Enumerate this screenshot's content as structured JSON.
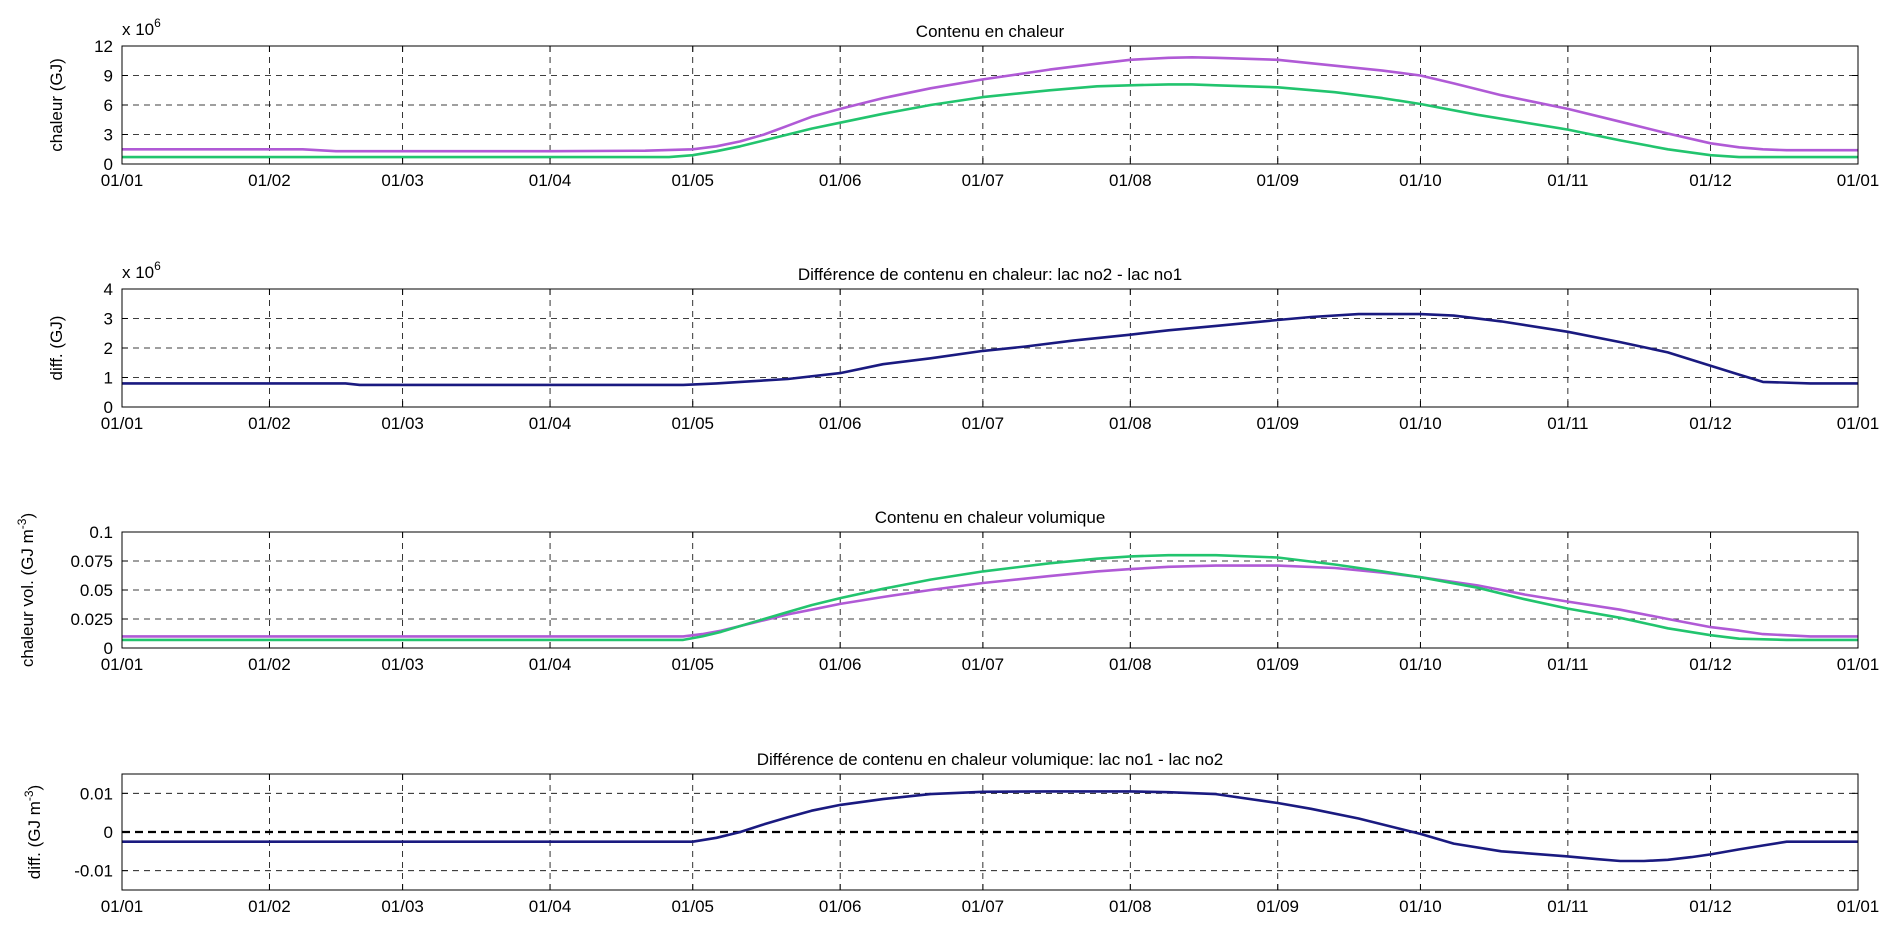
{
  "chart_data": [
    {
      "type": "line",
      "title": "Contenu en chaleur",
      "ylabel": "chaleur (GJ)",
      "scale_label": "x 10",
      "scale_exp": "6",
      "ylim": [
        0,
        12
      ],
      "yticks": [
        "0",
        "3",
        "6",
        "9",
        "12"
      ],
      "ytick_values": [
        0,
        3,
        6,
        9,
        12
      ],
      "grid": true,
      "xticks": [
        "01/01",
        "01/02",
        "01/03",
        "01/04",
        "01/05",
        "01/06",
        "01/07",
        "01/08",
        "01/09",
        "01/10",
        "01/11",
        "01/12",
        "01/01"
      ],
      "x_days": [
        0,
        31,
        59,
        90,
        120,
        151,
        181,
        212,
        243,
        273,
        304,
        334,
        365
      ],
      "series": [
        {
          "color": "#b05ad6",
          "x": [
            0,
            38,
            45,
            60,
            90,
            110,
            120,
            125,
            130,
            135,
            140,
            145,
            151,
            160,
            170,
            181,
            195,
            205,
            212,
            220,
            225,
            230,
            243,
            255,
            265,
            273,
            280,
            290,
            304,
            315,
            325,
            334,
            340,
            345,
            350,
            365
          ],
          "y": [
            1.5,
            1.5,
            1.3,
            1.3,
            1.3,
            1.35,
            1.5,
            1.8,
            2.3,
            3.0,
            3.9,
            4.8,
            5.6,
            6.7,
            7.7,
            8.6,
            9.6,
            10.2,
            10.6,
            10.8,
            10.85,
            10.8,
            10.6,
            10.0,
            9.5,
            9.0,
            8.2,
            7.0,
            5.6,
            4.3,
            3.1,
            2.1,
            1.7,
            1.5,
            1.4,
            1.4
          ]
        },
        {
          "color": "#22c46e",
          "x": [
            0,
            60,
            90,
            115,
            120,
            125,
            130,
            135,
            140,
            145,
            151,
            160,
            170,
            181,
            195,
            205,
            212,
            220,
            225,
            230,
            243,
            255,
            265,
            273,
            285,
            304,
            315,
            325,
            334,
            340,
            350,
            365
          ],
          "y": [
            0.7,
            0.7,
            0.7,
            0.7,
            0.9,
            1.3,
            1.8,
            2.4,
            3.0,
            3.6,
            4.2,
            5.1,
            6.0,
            6.8,
            7.5,
            7.9,
            8.0,
            8.1,
            8.1,
            8.0,
            7.8,
            7.3,
            6.7,
            6.1,
            5.0,
            3.5,
            2.4,
            1.5,
            0.9,
            0.7,
            0.7,
            0.7
          ]
        }
      ]
    },
    {
      "type": "line",
      "title": "Différence de contenu en chaleur: lac no2 - lac no1",
      "ylabel": "diff. (GJ)",
      "scale_label": "x 10",
      "scale_exp": "6",
      "ylim": [
        0,
        4
      ],
      "yticks": [
        "0",
        "1",
        "2",
        "3",
        "4"
      ],
      "ytick_values": [
        0,
        1,
        2,
        3,
        4
      ],
      "grid": true,
      "xticks": [
        "01/01",
        "01/02",
        "01/03",
        "01/04",
        "01/05",
        "01/06",
        "01/07",
        "01/08",
        "01/09",
        "01/10",
        "01/11",
        "01/12",
        "01/01"
      ],
      "x_days": [
        0,
        31,
        59,
        90,
        120,
        151,
        181,
        212,
        243,
        273,
        304,
        334,
        365
      ],
      "series": [
        {
          "color": "#1a1a80",
          "x": [
            0,
            30,
            47,
            50,
            90,
            118,
            125,
            130,
            140,
            151,
            160,
            170,
            181,
            190,
            200,
            212,
            220,
            230,
            243,
            250,
            260,
            273,
            280,
            290,
            304,
            315,
            325,
            334,
            340,
            345,
            355,
            365
          ],
          "y": [
            0.8,
            0.8,
            0.8,
            0.75,
            0.75,
            0.75,
            0.8,
            0.85,
            0.95,
            1.15,
            1.45,
            1.65,
            1.9,
            2.05,
            2.25,
            2.45,
            2.6,
            2.75,
            2.95,
            3.05,
            3.15,
            3.15,
            3.1,
            2.9,
            2.55,
            2.2,
            1.85,
            1.4,
            1.1,
            0.85,
            0.8,
            0.8
          ]
        }
      ]
    },
    {
      "type": "line",
      "title": "Contenu en chaleur volumique",
      "ylabel": "chaleur vol. (GJ m",
      "ylabel_sup": "-3",
      "ylabel_end": ")",
      "ylim": [
        0,
        0.1
      ],
      "yticks": [
        "0",
        "0.025",
        "0.05",
        "0.075",
        "0.1"
      ],
      "ytick_values": [
        0,
        0.025,
        0.05,
        0.075,
        0.1
      ],
      "grid": true,
      "xticks": [
        "01/01",
        "01/02",
        "01/03",
        "01/04",
        "01/05",
        "01/06",
        "01/07",
        "01/08",
        "01/09",
        "01/10",
        "01/11",
        "01/12",
        "01/01"
      ],
      "x_days": [
        0,
        31,
        59,
        90,
        120,
        151,
        181,
        212,
        243,
        273,
        304,
        334,
        365
      ],
      "series": [
        {
          "color": "#b05ad6",
          "x": [
            0,
            60,
            90,
            118,
            122,
            126,
            130,
            135,
            140,
            145,
            151,
            160,
            170,
            181,
            195,
            205,
            212,
            220,
            230,
            243,
            255,
            265,
            273,
            285,
            295,
            304,
            315,
            325,
            334,
            340,
            345,
            355,
            365
          ],
          "y": [
            0.01,
            0.01,
            0.01,
            0.01,
            0.012,
            0.015,
            0.019,
            0.024,
            0.029,
            0.033,
            0.038,
            0.044,
            0.05,
            0.056,
            0.062,
            0.066,
            0.068,
            0.07,
            0.071,
            0.071,
            0.069,
            0.065,
            0.061,
            0.054,
            0.046,
            0.04,
            0.033,
            0.025,
            0.018,
            0.015,
            0.012,
            0.01,
            0.01
          ]
        },
        {
          "color": "#22c46e",
          "x": [
            0,
            60,
            90,
            118,
            122,
            126,
            130,
            135,
            140,
            145,
            151,
            160,
            170,
            181,
            195,
            205,
            212,
            220,
            230,
            243,
            255,
            265,
            273,
            285,
            295,
            304,
            315,
            325,
            334,
            340,
            350,
            365
          ],
          "y": [
            0.007,
            0.007,
            0.007,
            0.007,
            0.01,
            0.014,
            0.019,
            0.025,
            0.031,
            0.037,
            0.043,
            0.051,
            0.059,
            0.066,
            0.073,
            0.077,
            0.079,
            0.08,
            0.08,
            0.078,
            0.072,
            0.066,
            0.061,
            0.052,
            0.042,
            0.034,
            0.026,
            0.017,
            0.011,
            0.008,
            0.007,
            0.007
          ]
        }
      ]
    },
    {
      "type": "line",
      "title": "Différence de contenu en chaleur volumique: lac no1 - lac no2",
      "ylabel": "diff. (GJ m",
      "ylabel_sup": "-3",
      "ylabel_end": ")",
      "ylim": [
        -0.015,
        0.015
      ],
      "yticks": [
        "-0.01",
        "0",
        "0.01"
      ],
      "ytick_values": [
        -0.01,
        0,
        0.01
      ],
      "grid": true,
      "zero_line": true,
      "xticks": [
        "01/01",
        "01/02",
        "01/03",
        "01/04",
        "01/05",
        "01/06",
        "01/07",
        "01/08",
        "01/09",
        "01/10",
        "01/11",
        "01/12",
        "01/01"
      ],
      "x_days": [
        0,
        31,
        59,
        90,
        120,
        151,
        181,
        212,
        243,
        273,
        304,
        334,
        365
      ],
      "series": [
        {
          "color": "#1a1a80",
          "x": [
            0,
            60,
            90,
            113,
            120,
            125,
            130,
            135,
            140,
            145,
            151,
            160,
            170,
            181,
            195,
            205,
            212,
            220,
            230,
            243,
            250,
            260,
            273,
            280,
            290,
            304,
            310,
            315,
            320,
            325,
            330,
            334,
            340,
            345,
            350,
            365
          ],
          "y": [
            -0.0025,
            -0.0025,
            -0.0025,
            -0.0025,
            -0.0025,
            -0.0015,
            0.0,
            0.002,
            0.0038,
            0.0055,
            0.007,
            0.0085,
            0.0098,
            0.0104,
            0.0105,
            0.0105,
            0.0105,
            0.0103,
            0.0098,
            0.0075,
            0.006,
            0.0035,
            -0.0005,
            -0.003,
            -0.005,
            -0.0063,
            -0.007,
            -0.0075,
            -0.0075,
            -0.0072,
            -0.0065,
            -0.0058,
            -0.0045,
            -0.0035,
            -0.0025,
            -0.0025
          ]
        }
      ]
    }
  ]
}
